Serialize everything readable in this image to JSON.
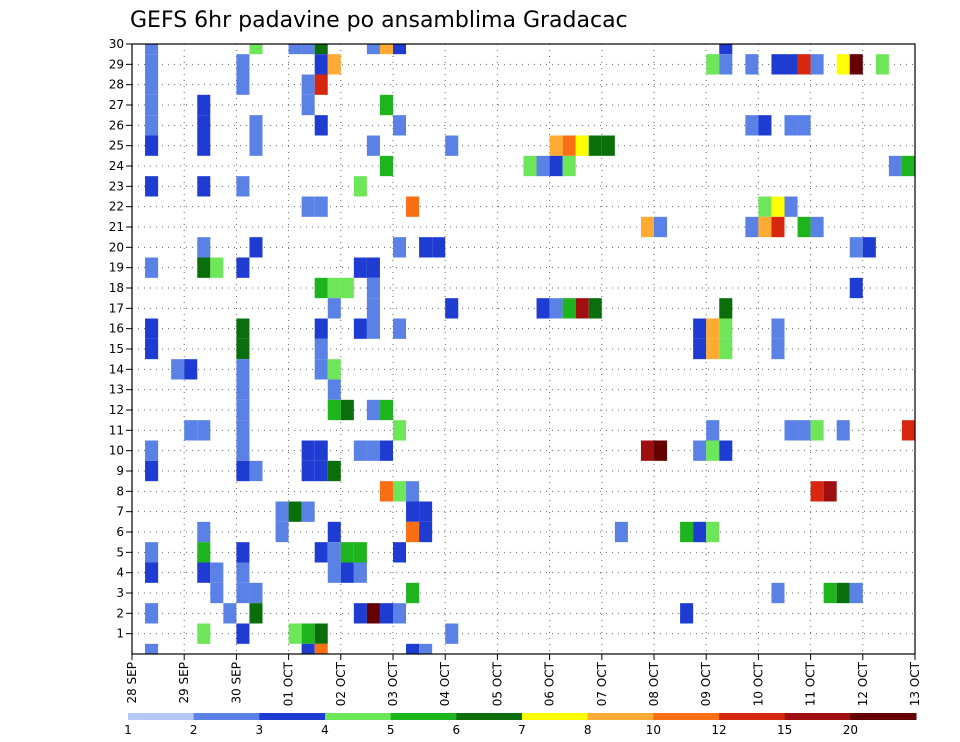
{
  "chart_data": {
    "type": "heatmap",
    "title": "GEFS 6hr padavine po ansamblima Gradacac",
    "x_start_day": 0,
    "x_end_day": 15,
    "x_tick_labels": [
      "28 SEP",
      "29 SEP",
      "30 SEP",
      "01 OCT",
      "02 OCT",
      "03 OCT",
      "04 OCT",
      "05 OCT",
      "06 OCT",
      "07 OCT",
      "08 OCT",
      "09 OCT",
      "10 OCT",
      "11 OCT",
      "12 OCT",
      "13 OCT"
    ],
    "y_members": [
      1,
      2,
      3,
      4,
      5,
      6,
      7,
      8,
      9,
      10,
      11,
      12,
      13,
      14,
      15,
      16,
      17,
      18,
      19,
      20,
      21,
      22,
      23,
      24,
      25,
      26,
      27,
      28,
      29,
      30
    ],
    "grid": true,
    "legend": {
      "placement": "bottom",
      "colors": [
        "#b4c8f5",
        "#5a82e6",
        "#1e3cd2",
        "#6ee65a",
        "#1eb41e",
        "#0a6e0a",
        "#ffff00",
        "#ffaa32",
        "#fa6e14",
        "#d7280f",
        "#a00f0f",
        "#640000"
      ],
      "labels": [
        "1",
        "2",
        "3",
        "4",
        "5",
        "6",
        "7",
        "8",
        "10",
        "12",
        "15",
        "20"
      ]
    },
    "cells": [
      [
        30,
        0.25,
        1
      ],
      [
        30,
        2.25,
        3
      ],
      [
        30,
        3,
        1
      ],
      [
        30,
        3.25,
        1
      ],
      [
        30,
        3.5,
        5
      ],
      [
        30,
        4.5,
        1
      ],
      [
        30,
        4.75,
        7
      ],
      [
        30,
        5,
        2
      ],
      [
        30,
        11.25,
        2
      ],
      [
        29,
        0.25,
        1
      ],
      [
        29,
        2,
        1
      ],
      [
        29,
        3.5,
        2
      ],
      [
        29,
        3.75,
        7
      ],
      [
        29,
        11,
        3
      ],
      [
        29,
        11.25,
        1
      ],
      [
        29,
        11.75,
        1
      ],
      [
        29,
        12.25,
        2
      ],
      [
        29,
        12.5,
        2
      ],
      [
        29,
        12.75,
        9
      ],
      [
        29,
        13,
        1
      ],
      [
        29,
        13.5,
        6
      ],
      [
        29,
        13.75,
        11
      ],
      [
        29,
        14.25,
        3
      ],
      [
        28,
        0.25,
        1
      ],
      [
        28,
        2,
        1
      ],
      [
        28,
        3.25,
        1
      ],
      [
        28,
        3.5,
        9
      ],
      [
        27,
        0.25,
        1
      ],
      [
        27,
        1.25,
        2
      ],
      [
        27,
        3.25,
        1
      ],
      [
        27,
        4.75,
        4
      ],
      [
        26,
        0.25,
        1
      ],
      [
        26,
        1.25,
        2
      ],
      [
        26,
        2.25,
        1
      ],
      [
        26,
        3.5,
        2
      ],
      [
        26,
        5,
        1
      ],
      [
        26,
        11.75,
        1
      ],
      [
        26,
        12,
        2
      ],
      [
        26,
        12.5,
        1
      ],
      [
        26,
        12.75,
        1
      ],
      [
        25,
        0.25,
        2
      ],
      [
        25,
        1.25,
        2
      ],
      [
        25,
        2.25,
        1
      ],
      [
        25,
        4.5,
        1
      ],
      [
        25,
        6,
        1
      ],
      [
        25,
        8,
        7
      ],
      [
        25,
        8.25,
        8
      ],
      [
        25,
        8.5,
        6
      ],
      [
        25,
        8.75,
        5
      ],
      [
        25,
        9,
        5
      ],
      [
        24,
        4.75,
        4
      ],
      [
        24,
        7.5,
        3
      ],
      [
        24,
        7.75,
        1
      ],
      [
        24,
        8,
        2
      ],
      [
        24,
        8.25,
        3
      ],
      [
        24,
        14.5,
        1
      ],
      [
        24,
        14.75,
        4
      ],
      [
        23,
        0.25,
        2
      ],
      [
        23,
        1.25,
        2
      ],
      [
        23,
        2,
        1
      ],
      [
        23,
        4.25,
        3
      ],
      [
        22,
        3.25,
        1
      ],
      [
        22,
        3.5,
        1
      ],
      [
        22,
        5.25,
        8
      ],
      [
        22,
        12,
        3
      ],
      [
        22,
        12.25,
        6
      ],
      [
        22,
        12.5,
        1
      ],
      [
        21,
        9.75,
        7
      ],
      [
        21,
        10,
        1
      ],
      [
        21,
        11.75,
        1
      ],
      [
        21,
        12,
        7
      ],
      [
        21,
        12.25,
        9
      ],
      [
        21,
        12.75,
        4
      ],
      [
        21,
        13,
        1
      ],
      [
        20,
        1.25,
        1
      ],
      [
        20,
        2.25,
        2
      ],
      [
        20,
        5,
        1
      ],
      [
        20,
        5.5,
        2
      ],
      [
        20,
        5.75,
        2
      ],
      [
        20,
        13.75,
        1
      ],
      [
        20,
        14,
        2
      ],
      [
        19,
        0.25,
        1
      ],
      [
        19,
        1.25,
        5
      ],
      [
        19,
        1.5,
        3
      ],
      [
        19,
        2,
        2
      ],
      [
        19,
        4.25,
        2
      ],
      [
        19,
        4.5,
        2
      ],
      [
        18,
        3.5,
        4
      ],
      [
        18,
        3.75,
        3
      ],
      [
        18,
        4,
        3
      ],
      [
        18,
        4.5,
        1
      ],
      [
        18,
        13.75,
        2
      ],
      [
        17,
        3.75,
        1
      ],
      [
        17,
        4.5,
        1
      ],
      [
        17,
        6,
        2
      ],
      [
        17,
        7.75,
        2
      ],
      [
        17,
        8,
        1
      ],
      [
        17,
        8.25,
        4
      ],
      [
        17,
        8.5,
        10
      ],
      [
        17,
        8.75,
        5
      ],
      [
        17,
        11.25,
        5
      ],
      [
        16,
        0.25,
        2
      ],
      [
        16,
        2,
        5
      ],
      [
        16,
        3.5,
        2
      ],
      [
        16,
        4.25,
        2
      ],
      [
        16,
        4.5,
        1
      ],
      [
        16,
        5,
        1
      ],
      [
        16,
        10.75,
        2
      ],
      [
        16,
        11,
        7
      ],
      [
        16,
        11.25,
        3
      ],
      [
        16,
        12.25,
        1
      ],
      [
        15,
        0.25,
        2
      ],
      [
        15,
        2,
        5
      ],
      [
        15,
        3.5,
        1
      ],
      [
        15,
        10.75,
        2
      ],
      [
        15,
        11,
        7
      ],
      [
        15,
        11.25,
        3
      ],
      [
        15,
        12.25,
        1
      ],
      [
        14,
        0.75,
        1
      ],
      [
        14,
        1,
        2
      ],
      [
        14,
        2,
        1
      ],
      [
        14,
        3.5,
        1
      ],
      [
        14,
        3.75,
        3
      ],
      [
        14,
        15,
        2
      ],
      [
        13,
        2,
        1
      ],
      [
        13,
        3.75,
        1
      ],
      [
        12,
        2,
        1
      ],
      [
        12,
        3.75,
        4
      ],
      [
        12,
        4,
        5
      ],
      [
        12,
        4.5,
        1
      ],
      [
        12,
        4.75,
        4
      ],
      [
        11,
        1,
        1
      ],
      [
        11,
        1.25,
        1
      ],
      [
        11,
        2,
        1
      ],
      [
        11,
        5,
        3
      ],
      [
        11,
        11,
        1
      ],
      [
        11,
        12.5,
        1
      ],
      [
        11,
        12.75,
        1
      ],
      [
        11,
        13,
        3
      ],
      [
        11,
        13.5,
        1
      ],
      [
        11,
        14.75,
        9
      ],
      [
        11,
        15,
        6
      ],
      [
        10,
        0.25,
        1
      ],
      [
        10,
        2,
        1
      ],
      [
        10,
        3.25,
        2
      ],
      [
        10,
        3.5,
        2
      ],
      [
        10,
        4.25,
        1
      ],
      [
        10,
        4.5,
        1
      ],
      [
        10,
        4.75,
        2
      ],
      [
        10,
        9.75,
        10
      ],
      [
        10,
        10,
        11
      ],
      [
        10,
        10.75,
        1
      ],
      [
        10,
        11,
        3
      ],
      [
        10,
        11.25,
        2
      ],
      [
        9,
        0.25,
        2
      ],
      [
        9,
        2,
        2
      ],
      [
        9,
        2.25,
        1
      ],
      [
        9,
        3.25,
        2
      ],
      [
        9,
        3.5,
        2
      ],
      [
        9,
        3.75,
        5
      ],
      [
        8,
        4.75,
        8
      ],
      [
        8,
        5,
        3
      ],
      [
        8,
        5.25,
        1
      ],
      [
        8,
        13,
        9
      ],
      [
        8,
        13.25,
        10
      ],
      [
        7,
        2.75,
        1
      ],
      [
        7,
        3,
        5
      ],
      [
        7,
        3.25,
        1
      ],
      [
        7,
        5.25,
        2
      ],
      [
        7,
        5.5,
        2
      ],
      [
        6,
        1.25,
        1
      ],
      [
        6,
        2.75,
        1
      ],
      [
        6,
        3.75,
        2
      ],
      [
        6,
        5.25,
        8
      ],
      [
        6,
        5.5,
        2
      ],
      [
        6,
        9.25,
        1
      ],
      [
        6,
        10.5,
        4
      ],
      [
        6,
        10.75,
        2
      ],
      [
        6,
        11,
        3
      ],
      [
        5,
        0.25,
        1
      ],
      [
        5,
        1.25,
        4
      ],
      [
        5,
        2,
        2
      ],
      [
        5,
        3.5,
        2
      ],
      [
        5,
        3.75,
        1
      ],
      [
        5,
        4,
        4
      ],
      [
        5,
        4.25,
        4
      ],
      [
        5,
        5,
        2
      ],
      [
        4,
        0.25,
        2
      ],
      [
        4,
        1.25,
        2
      ],
      [
        4,
        1.5,
        1
      ],
      [
        4,
        2,
        1
      ],
      [
        4,
        3.75,
        1
      ],
      [
        4,
        4,
        2
      ],
      [
        4,
        4.25,
        1
      ],
      [
        3,
        1.5,
        1
      ],
      [
        3,
        2,
        1
      ],
      [
        3,
        2.25,
        1
      ],
      [
        3,
        5.25,
        4
      ],
      [
        3,
        12.25,
        1
      ],
      [
        3,
        13.25,
        4
      ],
      [
        3,
        13.5,
        5
      ],
      [
        3,
        13.75,
        1
      ],
      [
        2,
        0.25,
        1
      ],
      [
        2,
        1.75,
        1
      ],
      [
        2,
        2.25,
        5
      ],
      [
        2,
        4.25,
        2
      ],
      [
        2,
        4.5,
        11
      ],
      [
        2,
        4.75,
        2
      ],
      [
        2,
        5,
        1
      ],
      [
        2,
        10.5,
        2
      ],
      [
        1,
        1.25,
        3
      ],
      [
        1,
        2,
        2
      ],
      [
        1,
        3,
        3
      ],
      [
        1,
        3.25,
        4
      ],
      [
        1,
        3.5,
        5
      ],
      [
        1,
        6,
        1
      ],
      [
        0,
        0.25,
        1
      ],
      [
        0,
        3.25,
        2
      ],
      [
        0,
        3.5,
        8
      ],
      [
        0,
        5.25,
        2
      ],
      [
        0,
        5.5,
        1
      ],
      [
        0,
        15,
        9
      ]
    ]
  }
}
